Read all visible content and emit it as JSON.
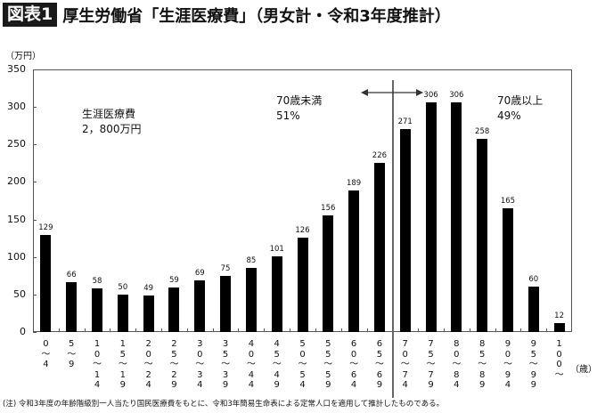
{
  "header": {
    "badge": "図表1",
    "title": "厚生労働省「生涯医療費」（男女計・令和3年度推計）"
  },
  "chart_data": {
    "type": "bar",
    "title": "厚生労働省「生涯医療費」（男女計・令和3年度推計）",
    "xlabel": "（歳）",
    "ylabel": "（万円）",
    "ylim": [
      0,
      350
    ],
    "yticks": [
      0,
      50,
      100,
      150,
      200,
      250,
      300,
      350
    ],
    "categories": [
      "0〜4",
      "5〜9",
      "10〜14",
      "15〜19",
      "20〜24",
      "25〜29",
      "30〜34",
      "35〜39",
      "40〜44",
      "45〜49",
      "50〜54",
      "55〜59",
      "60〜64",
      "65〜69",
      "70〜74",
      "75〜79",
      "80〜84",
      "85〜89",
      "90〜94",
      "95〜99",
      "100〜"
    ],
    "category_labels_vertical": [
      "0\n〜\n4",
      "5\n〜\n9",
      "1\n0\n〜\n1\n4",
      "1\n5\n〜\n1\n9",
      "2\n0\n〜\n2\n4",
      "2\n5\n〜\n2\n9",
      "3\n0\n〜\n3\n4",
      "3\n5\n〜\n3\n9",
      "4\n0\n〜\n4\n4",
      "4\n5\n〜\n4\n9",
      "5\n0\n〜\n5\n4",
      "5\n5\n〜\n5\n9",
      "6\n0\n〜\n6\n4",
      "6\n5\n〜\n6\n9",
      "7\n0\n〜\n7\n4",
      "7\n5\n〜\n7\n9",
      "8\n0\n〜\n8\n4",
      "8\n5\n〜\n8\n9",
      "9\n0\n〜\n9\n4",
      "9\n5\n〜\n9\n9",
      "1\n0\n0\n〜"
    ],
    "values": [
      129,
      66,
      58,
      50,
      49,
      59,
      69,
      75,
      85,
      101,
      126,
      156,
      189,
      226,
      271,
      306,
      306,
      258,
      165,
      60,
      12
    ],
    "grid": false,
    "annotations": [
      {
        "text": "生涯医療費\n2，800万円"
      },
      {
        "text": "70歳未満\n51%"
      },
      {
        "text": "70歳以上\n49%"
      }
    ],
    "divider_between": [
      "65〜69",
      "70〜74"
    ]
  },
  "annotations": {
    "total": "生涯医療費\n2，800万円",
    "under70": "70歳未満\n51%",
    "over70": "70歳以上\n49%"
  },
  "axis": {
    "y_unit": "（万円）",
    "x_unit": "（歳）"
  },
  "footnote": "(注) 令和3年度の年齢階級別一人当たり国民医療費をもとに、令和3年簡易生命表による定常人口を適用して推計したものである。",
  "colors": {
    "bar": "#000000",
    "badge_bg": "#1a1a1a",
    "axis": "#555555"
  }
}
